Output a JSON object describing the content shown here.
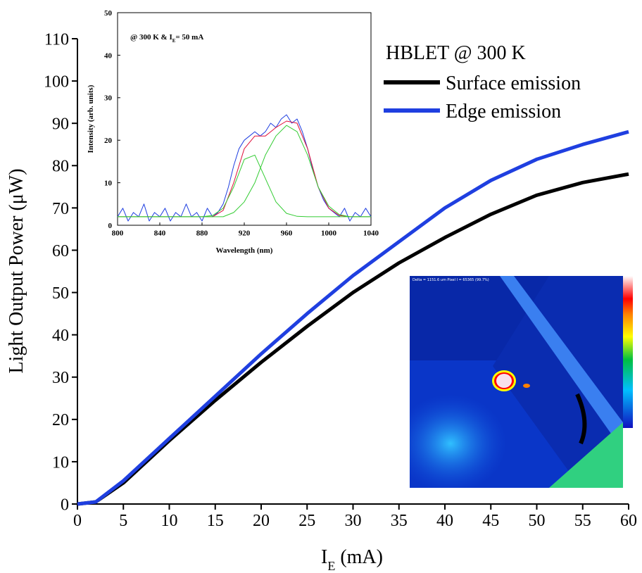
{
  "chart_data": [
    {
      "type": "line",
      "y_label": "Light Output Power (μW)",
      "x_label": [
        "I",
        "E",
        " (mA)"
      ],
      "legend_title": "HBLET @ 300 K",
      "x": [
        0,
        2,
        5,
        10,
        15,
        20,
        25,
        30,
        35,
        40,
        45,
        50,
        55,
        60
      ],
      "series": [
        {
          "name": "Surface emission",
          "color": "#000000",
          "values": [
            0,
            0.5,
            5,
            15,
            24.5,
            33.5,
            42,
            50,
            57,
            63,
            68.5,
            73,
            76,
            78
          ]
        },
        {
          "name": "Edge emission",
          "color": "#1f3fe0",
          "values": [
            0,
            0.5,
            5.5,
            15.5,
            25.5,
            35.5,
            45,
            54,
            62,
            70,
            76.5,
            81.5,
            85,
            88
          ]
        }
      ],
      "xlim": [
        0,
        60
      ],
      "xticks": [
        0,
        5,
        10,
        15,
        20,
        25,
        30,
        35,
        40,
        45,
        50,
        55,
        60
      ],
      "ylim": [
        0,
        110
      ],
      "yticks": [
        0,
        10,
        20,
        30,
        40,
        50,
        60,
        70,
        80,
        90,
        100,
        110
      ]
    },
    {
      "type": "line",
      "x_label": "Wavelength (nm)",
      "y_label": "Intensity (arb. units)",
      "annotation": [
        "@ 300 K & I",
        "E",
        "= 50 mA"
      ],
      "series": [
        {
          "color": "#1f3fe0",
          "x": [
            800,
            805,
            810,
            815,
            820,
            825,
            830,
            835,
            840,
            845,
            850,
            855,
            860,
            865,
            870,
            875,
            880,
            885,
            890,
            895,
            900,
            905,
            910,
            915,
            920,
            925,
            930,
            935,
            940,
            945,
            950,
            955,
            960,
            965,
            970,
            975,
            980,
            985,
            990,
            995,
            1000,
            1005,
            1010,
            1015,
            1020,
            1025,
            1030,
            1035,
            1040
          ],
          "values": [
            2,
            4,
            1,
            3,
            2,
            5,
            1,
            3,
            2,
            4,
            1,
            3,
            2,
            5,
            2,
            3,
            1,
            4,
            2,
            3,
            5,
            9,
            14,
            18,
            20,
            21,
            22,
            21,
            22,
            24,
            23,
            25,
            26,
            24,
            25,
            22,
            18,
            13,
            9,
            6,
            4,
            3,
            2,
            4,
            1,
            3,
            2,
            4,
            2
          ]
        },
        {
          "color": "#e0103a",
          "x": [
            800,
            810,
            820,
            830,
            840,
            850,
            860,
            870,
            880,
            890,
            900,
            910,
            920,
            930,
            940,
            950,
            960,
            970,
            980,
            990,
            1000,
            1010,
            1020,
            1030,
            1040
          ],
          "values": [
            2,
            2,
            2,
            2,
            2,
            2,
            2,
            2,
            2,
            2,
            3.5,
            10,
            18,
            21,
            21,
            23,
            24.5,
            24,
            18,
            9,
            4,
            2.3,
            2,
            2,
            2
          ]
        },
        {
          "color": "#33cc33",
          "x": [
            800,
            810,
            820,
            830,
            840,
            850,
            860,
            870,
            880,
            890,
            900,
            910,
            920,
            930,
            940,
            950,
            960,
            970,
            980,
            990,
            1000,
            1010,
            1020,
            1030,
            1040
          ],
          "values": [
            2,
            2,
            2,
            2,
            2,
            2,
            2,
            2,
            2,
            2.3,
            4,
            9,
            15.5,
            16.5,
            11,
            5.5,
            2.8,
            2.1,
            2,
            2,
            2,
            2,
            2,
            2,
            2
          ]
        },
        {
          "color": "#33cc33",
          "x": [
            800,
            810,
            820,
            830,
            840,
            850,
            860,
            870,
            880,
            890,
            900,
            910,
            920,
            930,
            940,
            950,
            960,
            970,
            980,
            990,
            1000,
            1010,
            1020,
            1030,
            1040
          ],
          "values": [
            2,
            2,
            2,
            2,
            2,
            2,
            2,
            2,
            2,
            2,
            2,
            3,
            5.5,
            10,
            16.5,
            21,
            23.5,
            22,
            16.5,
            9,
            4.5,
            2.5,
            2,
            2,
            2
          ]
        }
      ],
      "xlim": [
        800,
        1040
      ],
      "xticks": [
        800,
        840,
        880,
        920,
        960,
        1000,
        1040
      ],
      "ylim": [
        0,
        50
      ],
      "yticks": [
        0,
        10,
        20,
        30,
        40,
        50
      ]
    }
  ],
  "image": {
    "caption": "Delta = 1151.6 um Pixel I = 65365 (99.7%)"
  }
}
